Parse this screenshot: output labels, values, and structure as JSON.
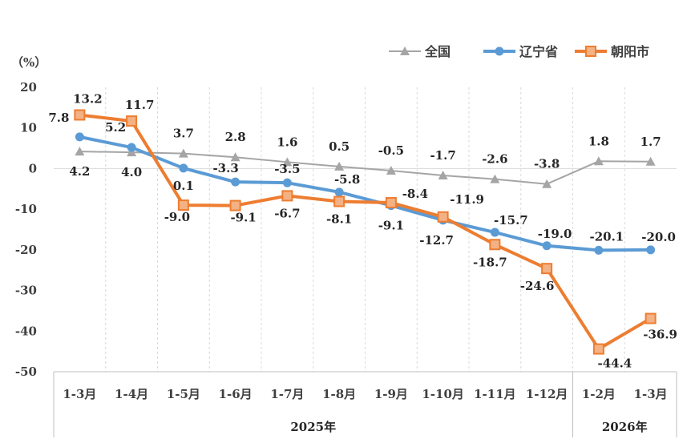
{
  "chart_data": {
    "type": "line",
    "ylabel": "（%）",
    "ylim": [
      -50,
      20
    ],
    "yticks": [
      20,
      10,
      0,
      -10,
      -20,
      -30,
      -40,
      -50
    ],
    "categories": [
      "1-3月",
      "1-4月",
      "1-5月",
      "1-6月",
      "1-7月",
      "1-8月",
      "1-9月",
      "1-10月",
      "1-11月",
      "1-12月",
      "1-2月",
      "1-3月"
    ],
    "year_groups": [
      {
        "label": "2025年",
        "count": 10
      },
      {
        "label": "2026年",
        "count": 2
      }
    ],
    "legend_position": "top-right",
    "series": [
      {
        "name": "全国",
        "color": "#A5A5A5",
        "marker": "triangle",
        "values": [
          4.2,
          4.0,
          3.7,
          2.8,
          1.6,
          0.5,
          -0.5,
          -1.7,
          -2.6,
          -3.8,
          1.8,
          1.7
        ]
      },
      {
        "name": "辽宁省",
        "color": "#5B9BD5",
        "marker": "circle",
        "values": [
          7.8,
          5.2,
          0.1,
          -3.3,
          -3.5,
          -5.8,
          -9.1,
          -12.7,
          -15.7,
          -19.0,
          -20.1,
          -20.0
        ]
      },
      {
        "name": "朝阳市",
        "color": "#ED7D31",
        "marker": "square",
        "values": [
          13.2,
          11.7,
          -9.0,
          -9.1,
          -6.7,
          -8.1,
          -8.4,
          -11.9,
          -18.7,
          -24.6,
          -44.4,
          -36.9
        ]
      }
    ]
  }
}
